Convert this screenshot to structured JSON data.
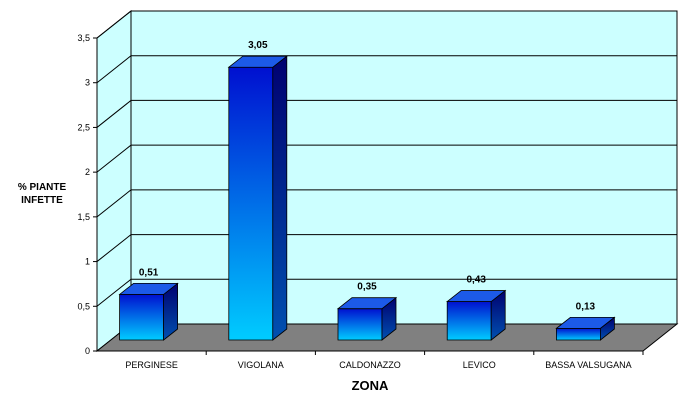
{
  "chart_data": {
    "type": "bar",
    "categories": [
      "PERGINESE",
      "VIGOLANA",
      "CALDONAZZO",
      "LEVICO",
      "BASSA VALSUGANA"
    ],
    "values": [
      0.51,
      3.05,
      0.35,
      0.43,
      0.13
    ],
    "data_labels": [
      "0,51",
      "3,05",
      "0,35",
      "0,43",
      "0,13"
    ],
    "ylabel": "% PIANTE INFETTE",
    "xlabel": "ZONA",
    "ylim": [
      0,
      3.5
    ],
    "yticks": [
      0,
      0.5,
      1,
      1.5,
      2,
      2.5,
      3,
      3.5
    ],
    "ytick_labels": [
      "0",
      "0,5",
      "1",
      "1,5",
      "2",
      "2,5",
      "3",
      "3,5"
    ],
    "grid": true,
    "style": "3d-column",
    "colors": {
      "wall": "#ccffff",
      "floor": "#808080",
      "bar_top": "#0000cc",
      "bar_bottom": "#00ccff",
      "bar_side": "#000080",
      "bar_cap": "#1c5ae8"
    }
  }
}
